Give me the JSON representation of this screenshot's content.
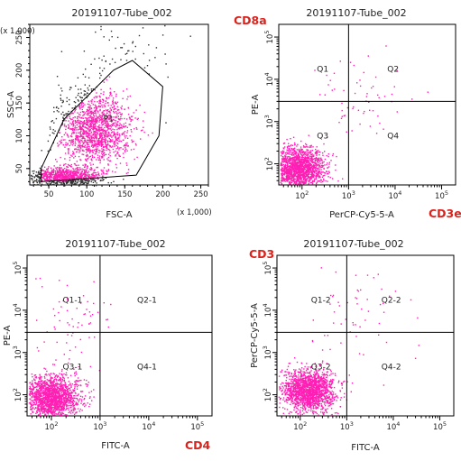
{
  "colors": {
    "dot": "#ff1fb4",
    "dot_gray": "#333333",
    "annotation": "#d9231c",
    "axis": "#000000"
  },
  "chart_data": [
    {
      "type": "scatter",
      "title": "20191107-Tube_002",
      "xlabel": "FSC-A",
      "ylabel": "SSC-A",
      "x_multiplier": "(x 1,000)",
      "y_multiplier": "(x 1,000)",
      "xlim": [
        25,
        260
      ],
      "ylim": [
        25,
        270
      ],
      "x_ticks": [
        "50",
        "100",
        "150",
        "200",
        "250"
      ],
      "y_ticks": [
        "50",
        "100",
        "150",
        "200",
        "250"
      ],
      "gate_label": "P1",
      "gate_polygon": [
        [
          40,
          50
        ],
        [
          70,
          125
        ],
        [
          135,
          200
        ],
        [
          160,
          215
        ],
        [
          200,
          175
        ],
        [
          195,
          100
        ],
        [
          165,
          40
        ],
        [
          40,
          30
        ]
      ],
      "clusters": [
        {
          "x": 110,
          "y": 110,
          "sx": 24,
          "sy": 28,
          "n": 1500
        },
        {
          "x": 70,
          "y": 38,
          "sx": 22,
          "sy": 7,
          "n": 900
        },
        {
          "x": 145,
          "y": 210,
          "sx": 30,
          "sy": 35,
          "n": 80,
          "outside": true
        }
      ]
    },
    {
      "type": "scatter",
      "title": "20191107-Tube_002",
      "xlabel": "PerCP-Cy5-5-A",
      "ylabel": "PE-A",
      "x_annotation": "CD3e",
      "y_annotation": "CD8a",
      "xlim_log": [
        1.5,
        5.3
      ],
      "ylim_log": [
        1.5,
        5.3
      ],
      "quadrant_gate": {
        "x": 1000,
        "y": 3000
      },
      "quadrant_labels": [
        "Q1",
        "Q2",
        "Q3",
        "Q4"
      ],
      "clusters": [
        {
          "x": 1.9,
          "y": 1.9,
          "sx": 0.28,
          "sy": 0.25,
          "n": 1700
        },
        {
          "x": 3.4,
          "y": 3.6,
          "sx": 0.5,
          "sy": 0.55,
          "n": 60
        }
      ]
    },
    {
      "type": "scatter",
      "title": "20191107-Tube_002",
      "xlabel": "FITC-A",
      "ylabel": "PE-A",
      "x_annotation": "CD4",
      "xlim_log": [
        1.5,
        5.3
      ],
      "ylim_log": [
        1.5,
        5.3
      ],
      "quadrant_gate": {
        "x": 1000,
        "y": 3000
      },
      "quadrant_labels": [
        "Q1-1",
        "Q2-1",
        "Q3-1",
        "Q4-1"
      ],
      "clusters": [
        {
          "x": 2.0,
          "y": 1.95,
          "sx": 0.28,
          "sy": 0.25,
          "n": 1700
        },
        {
          "x": 2.4,
          "y": 3.7,
          "sx": 0.4,
          "sy": 0.55,
          "n": 70
        }
      ]
    },
    {
      "type": "scatter",
      "title": "20191107-Tube_002",
      "xlabel": "FITC-A",
      "ylabel": "PerCP-Cy5-5-A",
      "y_annotation": "CD3",
      "xlim_log": [
        1.5,
        5.3
      ],
      "ylim_log": [
        1.5,
        5.3
      ],
      "quadrant_gate": {
        "x": 1000,
        "y": 3000
      },
      "quadrant_labels": [
        "Q1-2",
        "Q2-2",
        "Q3-2",
        "Q4-2"
      ],
      "clusters": [
        {
          "x": 2.15,
          "y": 2.1,
          "sx": 0.28,
          "sy": 0.25,
          "n": 1700
        },
        {
          "x": 3.1,
          "y": 3.8,
          "sx": 0.55,
          "sy": 0.6,
          "n": 60
        }
      ]
    }
  ]
}
